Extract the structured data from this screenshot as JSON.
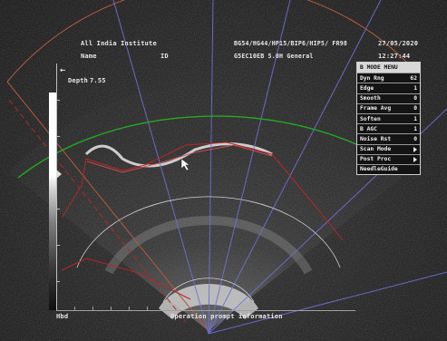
{
  "header": {
    "institution": "All India Institute",
    "name_label": "Name",
    "id_label": "ID",
    "settings_line": "BG54/HG44/HP15/BIP6/HIP5/ FR98",
    "date": "27/05/2020",
    "probe_line": "G5EC10EB  5.0H  General",
    "time": "12:27:44"
  },
  "left_panel": {
    "back_arrow": "←",
    "depth_label": "Depth",
    "depth_value": "7.55"
  },
  "menu": {
    "title": "B MODE MENU",
    "items": [
      {
        "label": "Dyn Rng",
        "value": "62"
      },
      {
        "label": "Edge",
        "value": "1"
      },
      {
        "label": "Smooth",
        "value": "0"
      },
      {
        "label": "Frame Avg",
        "value": "0"
      },
      {
        "label": "Soften",
        "value": "1"
      },
      {
        "label": "B AGC",
        "value": "1"
      },
      {
        "label": "Noise Rst",
        "value": "0"
      },
      {
        "label": "Scan Mode",
        "value": ""
      },
      {
        "label": "Post Proc",
        "value": ""
      },
      {
        "label": "NeedleGuide",
        "value": ""
      }
    ]
  },
  "footer": {
    "mode_label": "Hbd",
    "prompt": "Operation prompt information"
  },
  "colors": {
    "guide_lines": "#6f6fd8",
    "needle_guide": "#b32828",
    "focus_arc": "#25a825",
    "outer_arc": "#b45a3a"
  },
  "icons": {
    "cursor": "arrow-cursor-icon",
    "scan_mode_expand": "chevron-right-icon",
    "post_proc_expand": "chevron-right-icon"
  }
}
